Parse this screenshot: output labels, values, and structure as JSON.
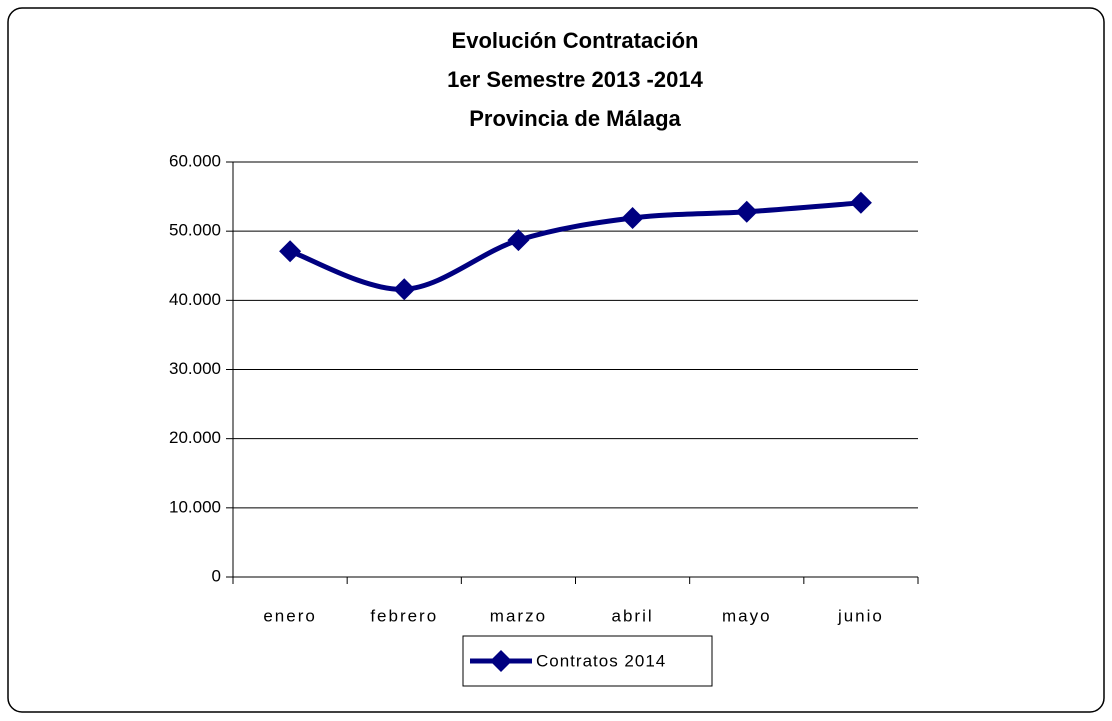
{
  "chart_data": {
    "type": "line",
    "title": [
      "Evolución Contratación",
      "1er Semestre 2013 -2014",
      "Provincia de Málaga"
    ],
    "categories": [
      "enero",
      "febrero",
      "marzo",
      "abril",
      "mayo",
      "junio"
    ],
    "series": [
      {
        "name": "Contratos 2014",
        "color": "#000080",
        "values": [
          47100,
          41600,
          48700,
          51900,
          52800,
          54100
        ]
      }
    ],
    "ylim": [
      0,
      60000
    ],
    "yticks": [
      0,
      {
        "value": 10000,
        "label": "10.000"
      },
      {
        "value": 20000,
        "label": "20.000"
      },
      {
        "value": 30000,
        "label": "30.000"
      },
      {
        "value": 40000,
        "label": "40.000"
      },
      {
        "value": 50000,
        "label": "50.000"
      },
      {
        "value": 60000,
        "label": "60.000"
      }
    ],
    "grid": true,
    "smooth": true,
    "legend": "bottom"
  }
}
